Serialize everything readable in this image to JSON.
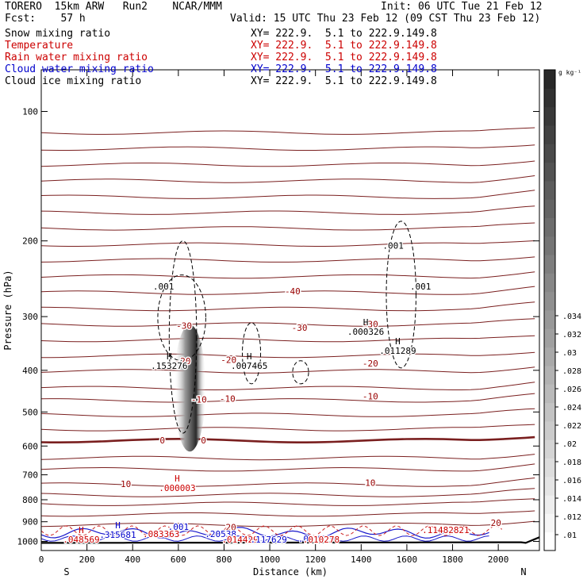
{
  "header": {
    "title": "TORERO  15km ARW   Run2    NCAR/MMM",
    "init": "Init: 06 UTC Tue 21 Feb 12",
    "fcst": "Fcst:    57 h",
    "valid": "Valid: 15 UTC Thu 23 Feb 12 (09 CST Thu 23 Feb 12)"
  },
  "fields": [
    {
      "name": "Snow mixing ratio",
      "xy": "XY= 222.9.  5.1 to 222.9.149.8",
      "color": "#000000"
    },
    {
      "name": "Temperature",
      "xy": "XY= 222.9.  5.1 to 222.9.149.8",
      "color": "#cc0000"
    },
    {
      "name": "Rain water mixing ratio",
      "xy": "XY= 222.9.  5.1 to 222.9.149.8",
      "color": "#cc0000"
    },
    {
      "name": "Cloud water mixing ratio",
      "xy": "XY= 222.9.  5.1 to 222.9.149.8",
      "color": "#0000cc"
    },
    {
      "name": "Cloud ice mixing ratio",
      "xy": "XY= 222.9.  5.1 to 222.9.149.8",
      "color": "#000000"
    }
  ],
  "chart_data": {
    "type": "cross-section",
    "xlabel": "Distance (km)",
    "ylabel": "Pressure (hPa)",
    "xlim": [
      0,
      2180
    ],
    "ylim": [
      1050,
      80
    ],
    "y_scale": "log",
    "x_ticks": [
      0,
      200,
      400,
      600,
      800,
      1000,
      1200,
      1400,
      1600,
      1800,
      2000
    ],
    "y_ticks": [
      100,
      200,
      300,
      400,
      500,
      600,
      700,
      800,
      900,
      1000
    ],
    "x_endpoints": [
      "S",
      "N"
    ],
    "colorbar": {
      "unit": "g kg⁻¹",
      "ticks": [
        ".01",
        ".012",
        ".014",
        ".016",
        ".018",
        ".02",
        ".022",
        ".024",
        ".026",
        ".028",
        ".03",
        ".032",
        ".034"
      ]
    },
    "temperature_labels": [
      {
        "x": 1100,
        "p": 262,
        "text": "-40"
      },
      {
        "x": 1130,
        "p": 318,
        "text": "-30"
      },
      {
        "x": 1440,
        "p": 312,
        "text": "-30"
      },
      {
        "x": 625,
        "p": 315,
        "text": "-30"
      },
      {
        "x": 1440,
        "p": 385,
        "text": "-20"
      },
      {
        "x": 620,
        "p": 380,
        "text": "-20"
      },
      {
        "x": 820,
        "p": 378,
        "text": "-20"
      },
      {
        "x": 1440,
        "p": 460,
        "text": "-10"
      },
      {
        "x": 815,
        "p": 465,
        "text": "-10"
      },
      {
        "x": 690,
        "p": 467,
        "text": "-10"
      },
      {
        "x": 530,
        "p": 582,
        "text": "0"
      },
      {
        "x": 710,
        "p": 582,
        "text": "0"
      },
      {
        "x": 370,
        "p": 735,
        "text": "10"
      },
      {
        "x": 1440,
        "p": 730,
        "text": "10"
      },
      {
        "x": 830,
        "p": 927,
        "text": "20"
      },
      {
        "x": 1990,
        "p": 905,
        "text": "20"
      }
    ],
    "maxima_labels": [
      {
        "x": 535,
        "p": 255,
        "text": ".001",
        "color": "#000000"
      },
      {
        "x": 1540,
        "p": 205,
        "text": ".001",
        "color": "#000000"
      },
      {
        "x": 1660,
        "p": 255,
        "text": ".001",
        "color": "#000000"
      },
      {
        "x": 1420,
        "p": 325,
        "text": ".000326",
        "color": "#000000",
        "h": "H"
      },
      {
        "x": 560,
        "p": 390,
        "text": ".153276",
        "color": "#000000",
        "h": "H"
      },
      {
        "x": 910,
        "p": 390,
        "text": ".007465",
        "color": "#000000",
        "h": "H"
      },
      {
        "x": 1560,
        "p": 360,
        "text": ".011289",
        "color": "#000000",
        "h": "H"
      },
      {
        "x": 595,
        "p": 750,
        "text": ".000003",
        "color": "#cc0000",
        "h": "H"
      },
      {
        "x": 600,
        "p": 925,
        "text": ".001",
        "color": "#0000cc"
      },
      {
        "x": 335,
        "p": 965,
        "text": ".315681",
        "color": "#0000cc",
        "h": "H"
      },
      {
        "x": 525,
        "p": 960,
        "text": ".083363",
        "color": "#cc0000"
      },
      {
        "x": 785,
        "p": 960,
        "text": ".20538",
        "color": "#0000cc"
      },
      {
        "x": 870,
        "p": 990,
        "text": ".014429",
        "color": "#cc0000"
      },
      {
        "x": 995,
        "p": 990,
        "text": ".117629",
        "color": "#0000cc"
      },
      {
        "x": 1170,
        "p": 985,
        "text": ".001",
        "color": "#0000cc"
      },
      {
        "x": 1225,
        "p": 990,
        "text": ".010278",
        "color": "#cc0000"
      },
      {
        "x": 1770,
        "p": 940,
        "text": ".11482821",
        "color": "#cc0000"
      },
      {
        "x": 175,
        "p": 990,
        "text": ".048569",
        "color": "#cc0000",
        "h": "H"
      }
    ]
  }
}
